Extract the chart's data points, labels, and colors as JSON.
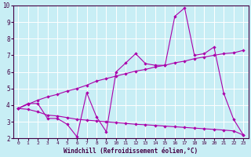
{
  "title": "",
  "xlabel": "Windchill (Refroidissement éolien,°C)",
  "ylabel": "",
  "background_color": "#c8eef5",
  "grid_color": "#ffffff",
  "line_color": "#aa00aa",
  "xlim": [
    -0.5,
    23.5
  ],
  "ylim": [
    2,
    10
  ],
  "xticks": [
    0,
    1,
    2,
    3,
    4,
    5,
    6,
    7,
    8,
    9,
    10,
    11,
    12,
    13,
    14,
    15,
    16,
    17,
    18,
    19,
    20,
    21,
    22,
    23
  ],
  "yticks": [
    2,
    3,
    4,
    5,
    6,
    7,
    8,
    9,
    10
  ],
  "line1_x": [
    0,
    1,
    2,
    3,
    4,
    5,
    6,
    7,
    8,
    9,
    10,
    11,
    12,
    13,
    14,
    15,
    16,
    17,
    18,
    19,
    20,
    21,
    22,
    23
  ],
  "line1_y": [
    3.8,
    4.1,
    4.1,
    3.2,
    3.2,
    2.85,
    2.1,
    4.75,
    3.3,
    2.4,
    6.0,
    6.55,
    7.1,
    6.5,
    6.4,
    6.4,
    9.35,
    9.85,
    7.0,
    7.1,
    7.5,
    4.7,
    3.15,
    2.2
  ],
  "line2_x": [
    0,
    1,
    2,
    3,
    4,
    5,
    6,
    7,
    8,
    9,
    10,
    11,
    12,
    13,
    14,
    15,
    16,
    17,
    18,
    19,
    20,
    21,
    22,
    23
  ],
  "line2_y": [
    3.8,
    4.05,
    4.3,
    4.5,
    4.65,
    4.85,
    5.0,
    5.2,
    5.45,
    5.6,
    5.75,
    5.9,
    6.05,
    6.15,
    6.3,
    6.4,
    6.55,
    6.65,
    6.8,
    6.9,
    7.0,
    7.1,
    7.15,
    7.3
  ],
  "line3_x": [
    0,
    1,
    2,
    3,
    4,
    5,
    6,
    7,
    8,
    9,
    10,
    11,
    12,
    13,
    14,
    15,
    16,
    17,
    18,
    19,
    20,
    21,
    22,
    23
  ],
  "line3_y": [
    3.8,
    3.75,
    3.6,
    3.4,
    3.35,
    3.25,
    3.15,
    3.1,
    3.05,
    3.0,
    2.95,
    2.9,
    2.85,
    2.82,
    2.78,
    2.74,
    2.7,
    2.66,
    2.62,
    2.58,
    2.54,
    2.5,
    2.45,
    2.2
  ]
}
